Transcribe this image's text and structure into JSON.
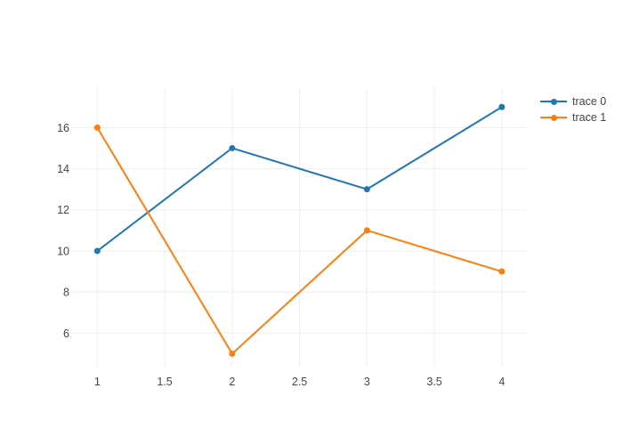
{
  "chart_data": {
    "type": "line",
    "title": "",
    "xlabel": "",
    "ylabel": "",
    "x": [
      1,
      2,
      3,
      4
    ],
    "series": [
      {
        "name": "trace 0",
        "color": "#1f77b4",
        "mode": "lines+markers",
        "values": [
          10,
          15,
          13,
          17
        ]
      },
      {
        "name": "trace 1",
        "color": "#ff7f0e",
        "mode": "lines+markers",
        "values": [
          16,
          5,
          11,
          9
        ]
      }
    ],
    "xlim": [
      0.813,
      4.186
    ],
    "ylim": [
      4.37,
      17.92
    ],
    "xticks": {
      "values": [
        1,
        1.5,
        2,
        2.5,
        3,
        3.5,
        4
      ],
      "labels": [
        "1",
        "1.5",
        "2",
        "2.5",
        "3",
        "3.5",
        "4"
      ]
    },
    "yticks": {
      "values": [
        6,
        8,
        10,
        12,
        14,
        16
      ],
      "labels": [
        "6",
        "8",
        "10",
        "12",
        "14",
        "16"
      ]
    },
    "grid": true,
    "legend_position": "outside-top-right"
  },
  "colors": {
    "background": "#ffffff",
    "grid": "#eeeeee",
    "tick_label": "#444444",
    "legend_text": "#444444"
  }
}
